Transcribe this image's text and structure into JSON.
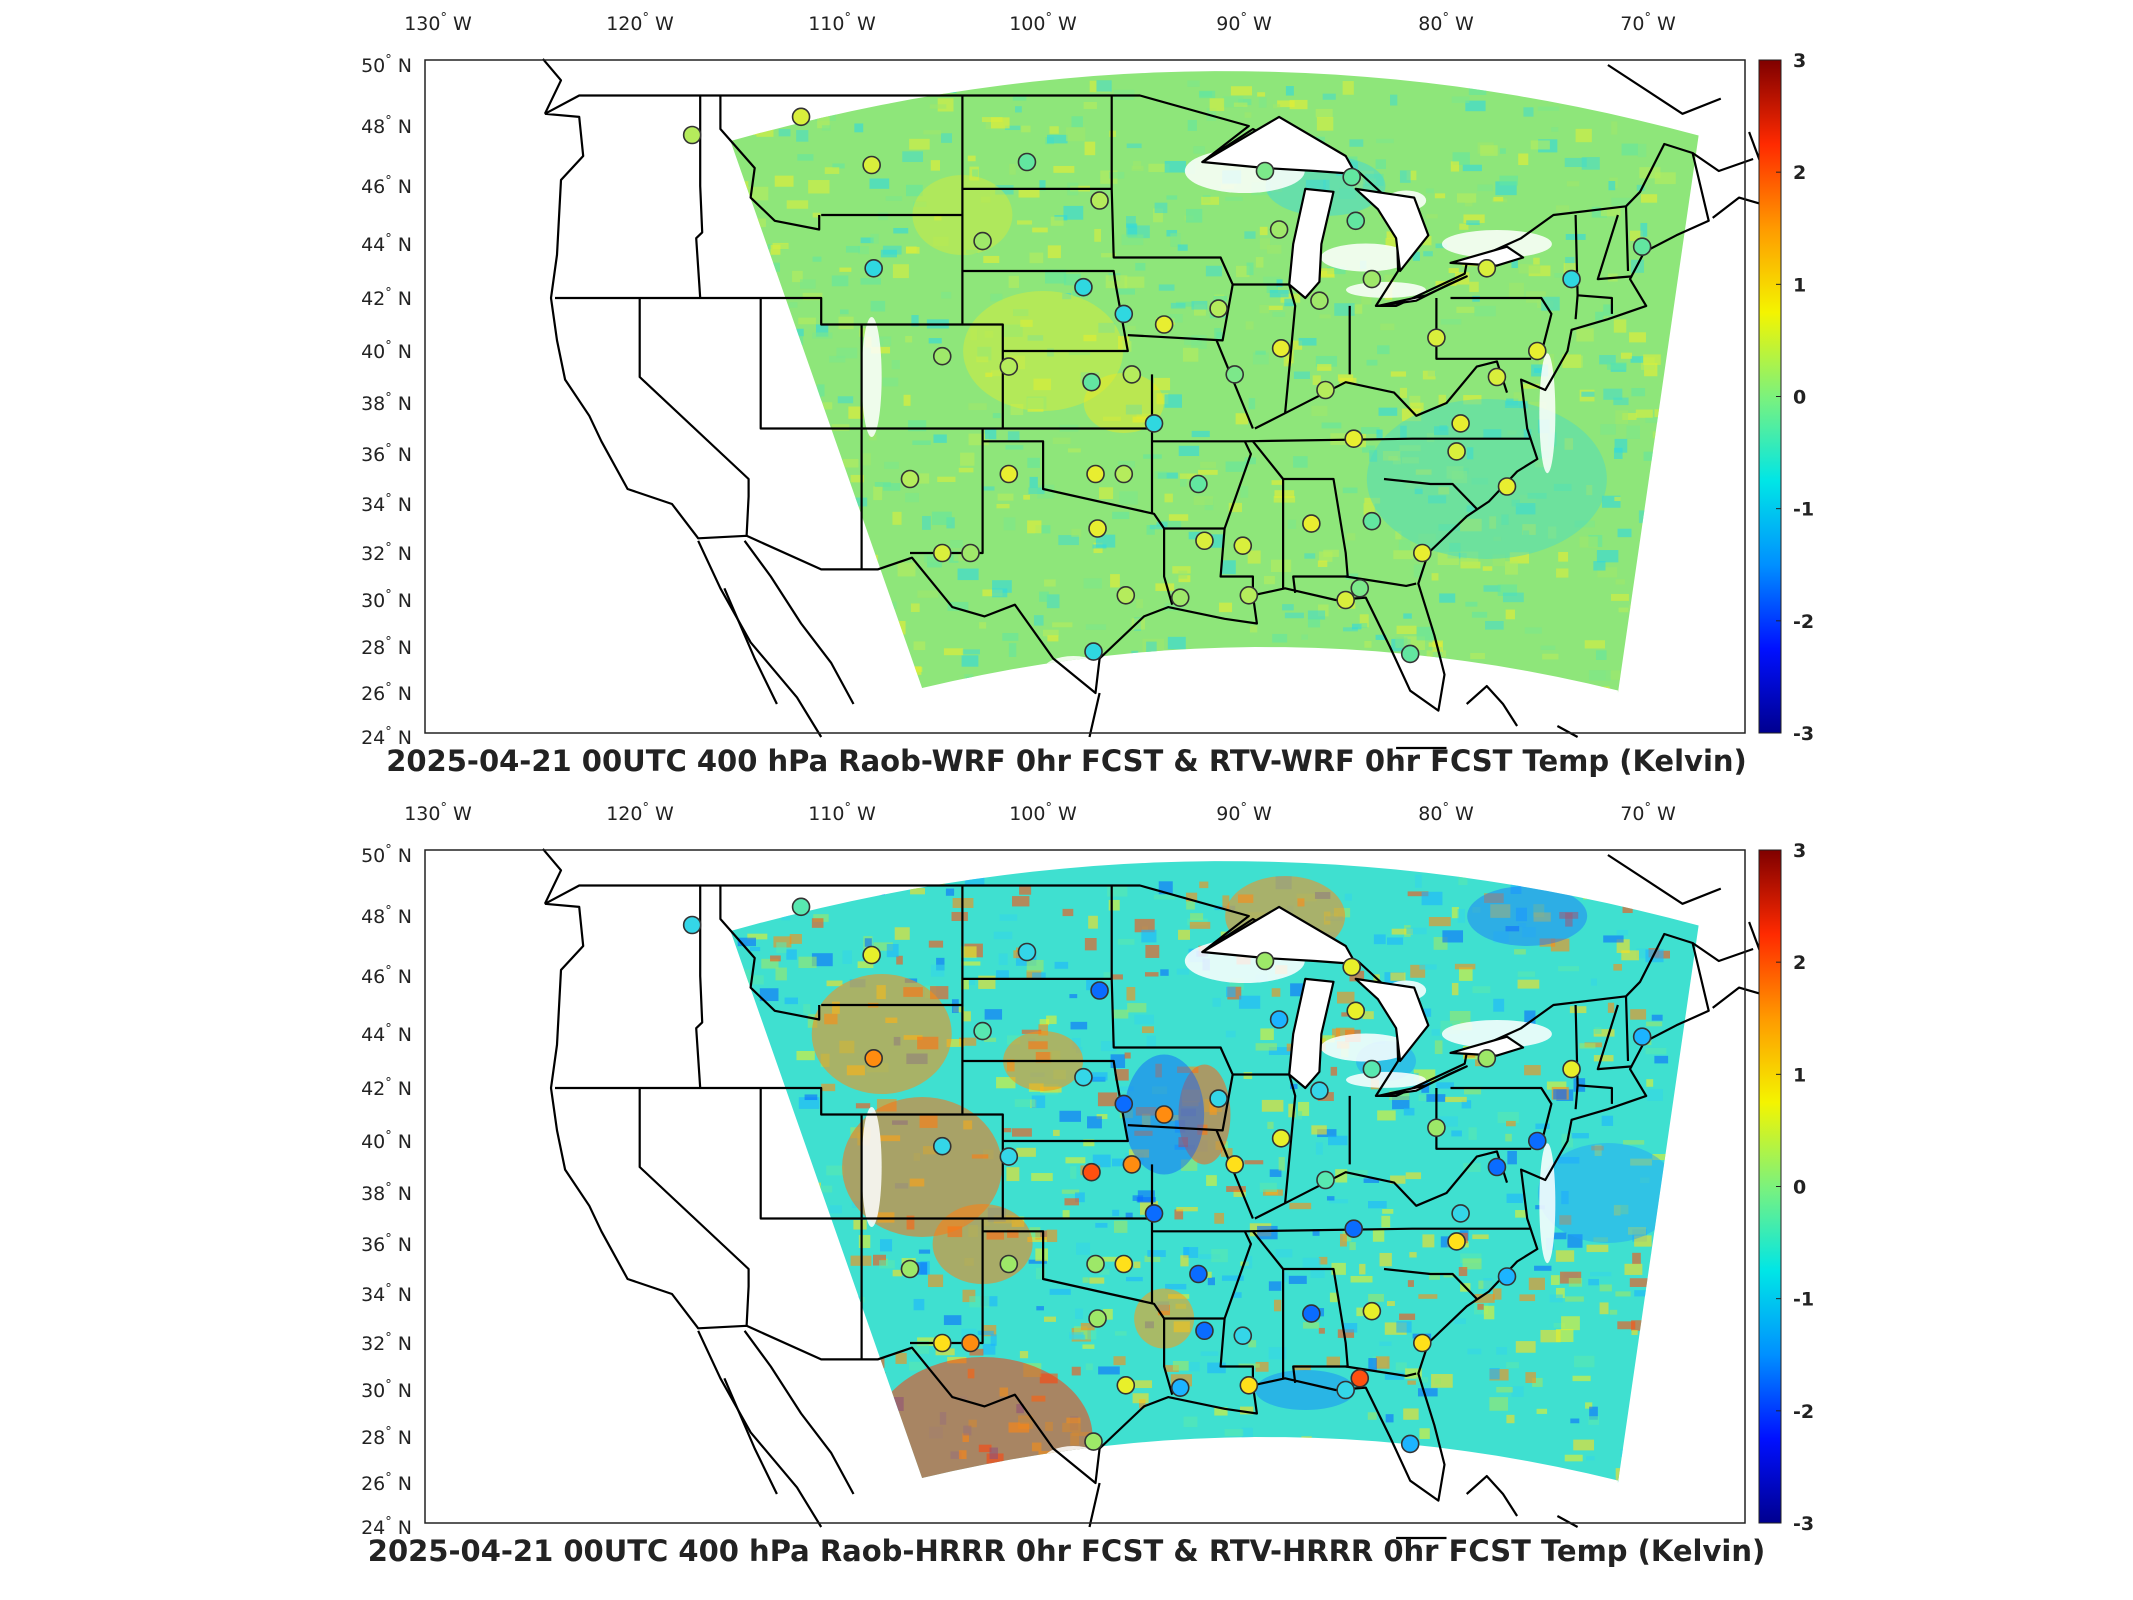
{
  "panels": [
    {
      "title": "2025-04-21 00UTC 400 hPa Raob-WRF 0hr FCST & RTV-WRF 0hr FCST Temp (Kelvin)",
      "scheme": "wrf"
    },
    {
      "title": "2025-04-21 00UTC 400 hPa Raob-HRRR 0hr FCST & RTV-HRRR 0hr FCST Temp (Kelvin)",
      "scheme": "hrrr"
    }
  ],
  "lon_labels": [
    {
      "deg": "130",
      "hem": "W"
    },
    {
      "deg": "120",
      "hem": "W"
    },
    {
      "deg": "110",
      "hem": "W"
    },
    {
      "deg": "100",
      "hem": "W"
    },
    {
      "deg": "90",
      "hem": "W"
    },
    {
      "deg": "80",
      "hem": "W"
    },
    {
      "deg": "70",
      "hem": "W"
    }
  ],
  "lat_labels": [
    {
      "deg": "50",
      "hem": "N"
    },
    {
      "deg": "48",
      "hem": "N"
    },
    {
      "deg": "46",
      "hem": "N"
    },
    {
      "deg": "44",
      "hem": "N"
    },
    {
      "deg": "42",
      "hem": "N"
    },
    {
      "deg": "40",
      "hem": "N"
    },
    {
      "deg": "38",
      "hem": "N"
    },
    {
      "deg": "36",
      "hem": "N"
    },
    {
      "deg": "34",
      "hem": "N"
    },
    {
      "deg": "32",
      "hem": "N"
    },
    {
      "deg": "30",
      "hem": "N"
    },
    {
      "deg": "28",
      "hem": "N"
    },
    {
      "deg": "26",
      "hem": "N"
    },
    {
      "deg": "24",
      "hem": "N"
    }
  ],
  "colorbar": {
    "ticks": [
      "3",
      "2",
      "1",
      "0",
      "-1",
      "-2",
      "-3"
    ],
    "colors": [
      "#7f0000",
      "#ff2a00",
      "#ff9a00",
      "#f4f400",
      "#7cf27c",
      "#00e6e6",
      "#0090ff",
      "#0010ff",
      "#00008f"
    ]
  },
  "colors": {
    "wrf_base": "#8ee67a",
    "hrrr_base": "#3fe0d0",
    "coast": "#000000"
  }
}
